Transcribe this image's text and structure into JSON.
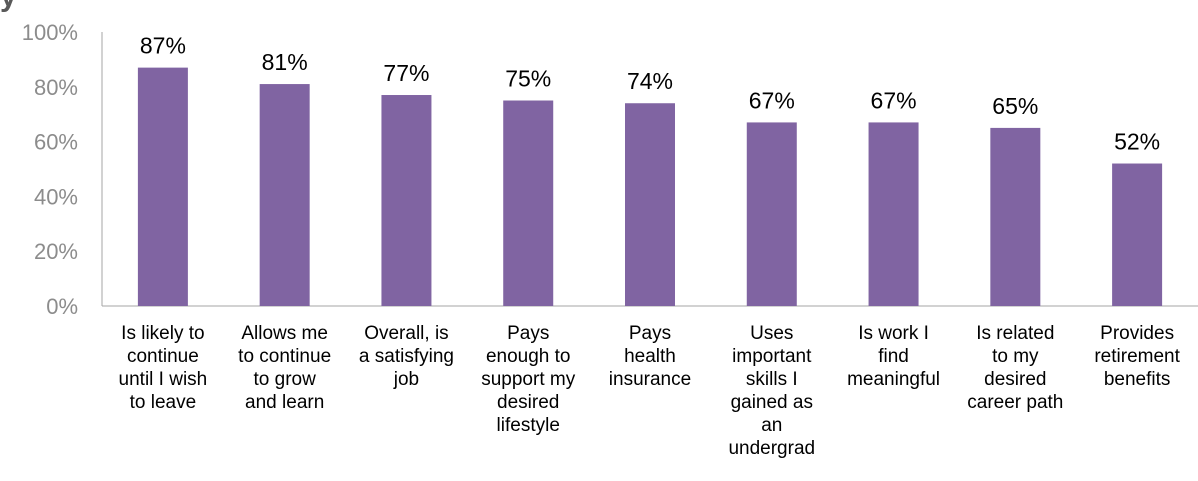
{
  "chart_data": {
    "type": "bar",
    "title": "",
    "xlabel": "",
    "ylabel": "",
    "ylim": [
      0,
      100
    ],
    "yticks": [
      "0%",
      "20%",
      "40%",
      "60%",
      "80%",
      "100%"
    ],
    "grid": false,
    "bar_color": "#8064a2",
    "categories": [
      [
        "Is likely to",
        "continue",
        "until I wish",
        "to leave"
      ],
      [
        "Allows me",
        "to continue",
        "to grow",
        "and learn"
      ],
      [
        "Overall, is",
        "a satisfying",
        "job"
      ],
      [
        "Pays",
        "enough to",
        "support my",
        "desired",
        "lifestyle"
      ],
      [
        "Pays",
        "health",
        "insurance"
      ],
      [
        "Uses",
        "important",
        "skills I",
        "gained as",
        "an",
        "undergrad"
      ],
      [
        "Is work I",
        "find",
        "meaningful"
      ],
      [
        "Is related",
        "to my",
        "desired",
        "career path"
      ],
      [
        "Provides",
        "retirement",
        "benefits"
      ]
    ],
    "values": [
      87,
      81,
      77,
      75,
      74,
      67,
      67,
      65,
      52
    ],
    "data_labels": [
      "87%",
      "81%",
      "77%",
      "75%",
      "74%",
      "67%",
      "67%",
      "65%",
      "52%"
    ]
  }
}
